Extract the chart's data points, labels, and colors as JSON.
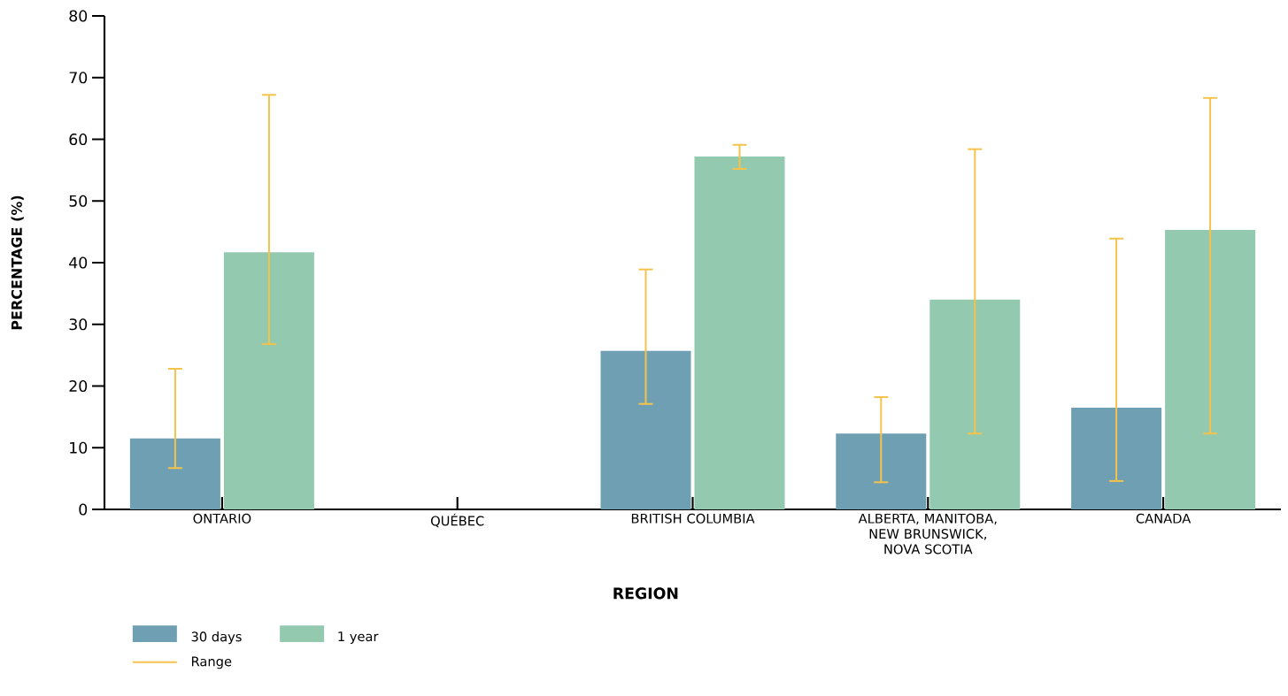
{
  "chart_data": {
    "type": "bar",
    "xlabel": "REGION",
    "ylabel": "PERCENTAGE (%)",
    "categories": [
      "ONTARIO",
      "QUÉBEC",
      "BRITISH COLUMBIA",
      "ALBERTA, MANITOBA, NEW BRUNSWICK, NOVA SCOTIA",
      "CANADA"
    ],
    "series": [
      {
        "name": "30 days",
        "color": "#6f9fb3",
        "values": [
          11.5,
          null,
          25.7,
          12.3,
          16.5
        ],
        "errors": [
          [
            6.7,
            22.8
          ],
          null,
          [
            17.1,
            38.9
          ],
          [
            4.4,
            18.2
          ],
          [
            4.6,
            43.9
          ]
        ]
      },
      {
        "name": "1 year",
        "color": "#93c9ae",
        "values": [
          41.7,
          null,
          57.2,
          34.0,
          45.3
        ],
        "errors": [
          [
            26.8,
            67.2
          ],
          null,
          [
            55.2,
            59.1
          ],
          [
            12.3,
            58.4
          ],
          [
            12.3,
            66.7
          ]
        ]
      }
    ],
    "annotations": [
      "Range"
    ],
    "ylim": [
      0,
      80
    ],
    "yticks": [
      0,
      10,
      20,
      30,
      40,
      50,
      60,
      70,
      80
    ],
    "legend": "bottom"
  }
}
